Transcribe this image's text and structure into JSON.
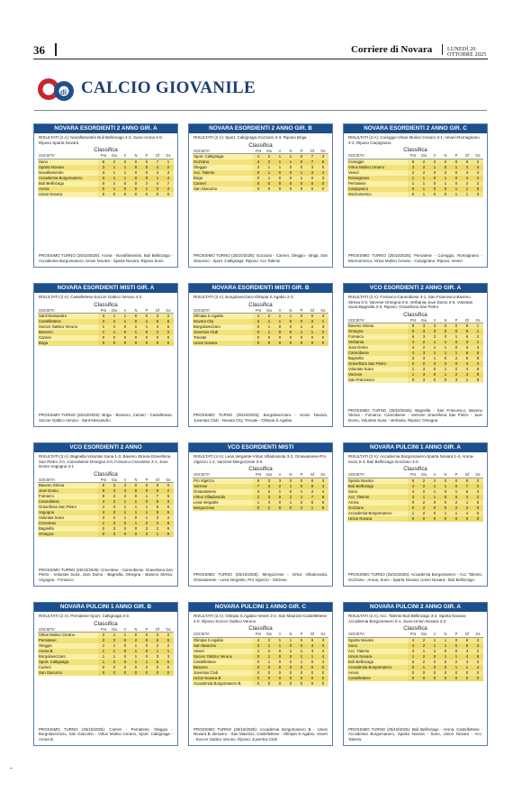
{
  "header": {
    "page_number": "36",
    "masthead": "Corriere di Novara",
    "date": "LUNEDÌ 20 OTTOBRE 2025"
  },
  "section": {
    "logo_text": "di",
    "title": "CALCIO GIOVANILE"
  },
  "table_headers": [
    "SOCIETA'",
    "Pnt",
    "Gio",
    "V",
    "N",
    "P",
    "Gf",
    "Gs"
  ],
  "classifica_label": "Classifica",
  "boxes": [
    {
      "title": "NOVARA ESORDIENTI 2 ANNO GIR. A",
      "results": "RISULTATI (2 A): Novaflamentin Buli Bellinzago 4-3, Suno-Arona 4-0. Riposo Sparta Novara",
      "rows": [
        [
          "Suno",
          "6",
          "2",
          "2",
          "0",
          "0",
          "7",
          "1"
        ],
        [
          "Sparta Novara",
          "3",
          "1",
          "1",
          "0",
          "0",
          "4",
          "2"
        ],
        [
          "Novafiamentin",
          "3",
          "1",
          "1",
          "0",
          "0",
          "4",
          "3"
        ],
        [
          "Accademia Borgomanero",
          "3",
          "1",
          "1",
          "0",
          "0",
          "1",
          "4"
        ],
        [
          "Buli Bellinzago",
          "0",
          "2",
          "0",
          "0",
          "2",
          "4",
          "7"
        ],
        [
          "Arona",
          "0",
          "1",
          "0",
          "0",
          "1",
          "0",
          "4"
        ],
        [
          "Union Novara",
          "0",
          "0",
          "0",
          "0",
          "0",
          "0",
          "0"
        ]
      ],
      "next": "PROSSIMO TURNO (25/10/2025): Arona - Novaflamentin, Buli Bellinzago - Accademia Borgomanero, Union Novara - Sparta Novara. Riposo Suno"
    },
    {
      "title": "NOVARA ESORDIENTI 2 ANNO GIR. B",
      "results": "RISULTATI (2 A): Sport. Caltignaga-Gozzano 3-3. Riposo Briga",
      "rows": [
        [
          "Sport. Caltignaga",
          "4",
          "2",
          "1",
          "1",
          "0",
          "7",
          "3"
        ],
        [
          "Gozzano",
          "4",
          "2",
          "1",
          "1",
          "0",
          "7",
          "6"
        ],
        [
          "Oleggio",
          "3",
          "1",
          "1",
          "0",
          "0",
          "3",
          "0"
        ],
        [
          "Acc. Talento",
          "0",
          "1",
          "0",
          "0",
          "1",
          "3",
          "4"
        ],
        [
          "Briga",
          "0",
          "1",
          "0",
          "0",
          "1",
          "0",
          "3"
        ],
        [
          "Cameri",
          "0",
          "0",
          "0",
          "0",
          "0",
          "0",
          "0"
        ],
        [
          "San Giacomo",
          "0",
          "0",
          "0",
          "0",
          "0",
          "0",
          "0"
        ]
      ],
      "next": "PROSSIMO TURNO (25/10/2025): Gozzano - Cameri, Oleggio - Briga, San Giacomo - Sport. Caltignaga. Riposo: Acc Talento"
    },
    {
      "title": "NOVARA ESORDIENTI 2 ANNO GIR. C",
      "results": "RISULTATI (2 A): Cureggio-Virtus Mulino Cerano 3-1, Veveri-Romagnano 2-2. Riposo Carpignano",
      "rows": [
        [
          "Cureggio",
          "6",
          "2",
          "2",
          "0",
          "0",
          "6",
          "2"
        ],
        [
          "Virtus Mulino Cerano",
          "3",
          "2",
          "1",
          "0",
          "1",
          "4",
          "4"
        ],
        [
          "Veveri",
          "2",
          "2",
          "0",
          "2",
          "0",
          "4",
          "4"
        ],
        [
          "Romagnano",
          "1",
          "1",
          "0",
          "1",
          "0",
          "2",
          "2"
        ],
        [
          "Pernatese",
          "1",
          "1",
          "0",
          "1",
          "0",
          "2",
          "2"
        ],
        [
          "Carpignano",
          "0",
          "1",
          "0",
          "0",
          "1",
          "1",
          "5"
        ],
        [
          "Mezzomerico",
          "0",
          "1",
          "0",
          "0",
          "1",
          "1",
          "3"
        ]
      ],
      "next": "PROSSIMO TURNO (25/10/2025): Pernatese - Cureggio, Romagnano - Mezzomerico, Virtus Mulino Cerano - Carpignano. Riposo: Veveri"
    },
    {
      "title": "NOVARA ESORDIENTI MISTI GIR. A",
      "results": "RISULTATI (2 A): Castelletese-Soccer Gattico Veruno 4-2.",
      "rows": [
        [
          "Sant'Alessandro",
          "3",
          "1",
          "1",
          "0",
          "0",
          "3",
          "2"
        ],
        [
          "Castellettese",
          "3",
          "2",
          "1",
          "0",
          "1",
          "6",
          "5"
        ],
        [
          "Soccer Gattico Veruno",
          "1",
          "2",
          "0",
          "1",
          "1",
          "4",
          "6"
        ],
        [
          "Bessero",
          "1",
          "1",
          "0",
          "1",
          "0",
          "2",
          "2"
        ],
        [
          "Cameri",
          "0",
          "0",
          "0",
          "0",
          "0",
          "0",
          "0"
        ],
        [
          "Briga",
          "0",
          "0",
          "0",
          "0",
          "0",
          "0",
          "0"
        ]
      ],
      "next": "PROSSIMO TURNO (25/10/2025): Briga - Bessero, Cameri - Castelletese, Soccer Gattico Veruno - Sant'Alessandro."
    },
    {
      "title": "NOVARA ESORDIENTI MISTI GIR. B",
      "results": "RISULTATI (2 A): Borgolavezzaro-Olimpia S.Agabio 2-3.",
      "rows": [
        [
          "Olimpia S.Agabio",
          "4",
          "2",
          "1",
          "1",
          "0",
          "5",
          "4"
        ],
        [
          "Novara City",
          "3",
          "1",
          "1",
          "0",
          "0",
          "2",
          "1"
        ],
        [
          "Borgolavezzaro",
          "0",
          "1",
          "0",
          "0",
          "1",
          "2",
          "3"
        ],
        [
          "Juventus Club",
          "0",
          "1",
          "0",
          "0",
          "1",
          "1",
          "2"
        ],
        [
          "Trecate",
          "0",
          "0",
          "0",
          "0",
          "0",
          "0",
          "0"
        ],
        [
          "Union Novara",
          "0",
          "0",
          "0",
          "0",
          "0",
          "0",
          "0"
        ]
      ],
      "next": "PROSSIMO TURNO (25/10/2025): Borgolavezzaro - Union Novara, Juventus Club - Novara City, Trecate - Olimpia S.Agabio."
    },
    {
      "title": "VCO ESORDIENTI 2 ANNO GIR. A",
      "results": "RISULTATI (2 A): Fomarco-Cannobiese 3-1, San Francesco-Baveno Stresa 0-3, Varzese-Omegna 0-5, Verbania-Juve Domo 2-0, Voluntas Suna-Bagnella 2-0. Riposo: Gravellona San Pietro",
      "rows": [
        [
          "Baveno Stresa",
          "9",
          "3",
          "3",
          "0",
          "0",
          "9",
          "1"
        ],
        [
          "Omegna",
          "9",
          "3",
          "3",
          "0",
          "0",
          "9",
          "1"
        ],
        [
          "Fomarco",
          "6",
          "3",
          "2",
          "0",
          "1",
          "6",
          "2"
        ],
        [
          "Verbania",
          "4",
          "2",
          "1",
          "1",
          "0",
          "3",
          "1"
        ],
        [
          "Juve Domo",
          "4",
          "2",
          "1",
          "1",
          "0",
          "3",
          "3"
        ],
        [
          "Cannobiese",
          "4",
          "3",
          "1",
          "1",
          "1",
          "6",
          "5"
        ],
        [
          "Bagnella",
          "3",
          "3",
          "1",
          "0",
          "2",
          "5",
          "8"
        ],
        [
          "Gravellona San Pietro",
          "2",
          "2",
          "0",
          "2",
          "0",
          "4",
          "4"
        ],
        [
          "Voluntas Suna",
          "1",
          "3",
          "0",
          "1",
          "2",
          "4",
          "8"
        ],
        [
          "Varzese",
          "1",
          "3",
          "0",
          "1",
          "2",
          "3",
          "8"
        ],
        [
          "San Francesco",
          "0",
          "3",
          "0",
          "0",
          "3",
          "1",
          "9"
        ]
      ],
      "next": "PROSSIMO TURNO (25/10/2025): Bagnella - San Francesco, Baveno Stresa - Fomarco, Cannobiese - Varzese Gravellona San Pietro - Juve Domo, Voluntas Suna - Verbania. Riposo: Omegna"
    },
    {
      "title": "VCO ESORDIENTI 2 ANNO",
      "results": "RISULTATI (3 A): Bagnella-Voluntas Suna 1-3, Baveno Stresa-Gravellona San Pietro 3-0, Cannobiese-Omegna 3-0, Fomarco-Crevolese 3-1, Juve Domo-Vogogna 3-1",
      "rows": [
        [
          "Baveno Stresa",
          "9",
          "3",
          "3",
          "0",
          "0",
          "9",
          "0"
        ],
        [
          "Juve Domo",
          "9",
          "3",
          "3",
          "0",
          "0",
          "9",
          "2"
        ],
        [
          "Fomarco",
          "6",
          "3",
          "2",
          "0",
          "1",
          "7",
          "5"
        ],
        [
          "Cannobiese",
          "4",
          "2",
          "1",
          "1",
          "0",
          "5",
          "3"
        ],
        [
          "Gravellona San Pietro",
          "4",
          "3",
          "1",
          "1",
          "1",
          "5",
          "6"
        ],
        [
          "Vogogna",
          "4",
          "3",
          "1",
          "1",
          "1",
          "8",
          "6"
        ],
        [
          "Voluntas Suna",
          "3",
          "2",
          "1",
          "0",
          "1",
          "3",
          "4"
        ],
        [
          "Crevolese",
          "1",
          "3",
          "0",
          "1",
          "2",
          "4",
          "8"
        ],
        [
          "Bagnella",
          "0",
          "3",
          "0",
          "0",
          "3",
          "2",
          "9"
        ],
        [
          "Omegna",
          "0",
          "3",
          "0",
          "0",
          "3",
          "1",
          "9"
        ]
      ],
      "next": "PROSSIMO TURNO (25/10/2025): Crevolese - Cannobiese, Gravellona San Pietro - Voluntas Suna, Juve Domo - Bagnella, Omegna - Baveno Stresa, Vogogna - Fomarco."
    },
    {
      "title": "VCO ESORDIENTI MISTI",
      "results": "RISULTATI (4 A): Lesa Vergante-Virtus Villadossola 3-3, Omavassese-Pro Vigezzo 1-2, Varzese-Mergozzese 3-0.",
      "rows": [
        [
          "Pro Vigezzo",
          "9",
          "3",
          "3",
          "0",
          "0",
          "8",
          "3"
        ],
        [
          "Varzese",
          "7",
          "3",
          "2",
          "1",
          "0",
          "8",
          "3"
        ],
        [
          "Omavassese",
          "3",
          "2",
          "1",
          "0",
          "1",
          "4",
          "4"
        ],
        [
          "Virtus Villadossola",
          "2",
          "3",
          "0",
          "2",
          "1",
          "7",
          "8"
        ],
        [
          "Lesa Vergante",
          "1",
          "3",
          "0",
          "1",
          "2",
          "5",
          "8"
        ],
        [
          "Mergozzese",
          "0",
          "2",
          "0",
          "0",
          "2",
          "1",
          "5"
        ]
      ],
      "next": "PROSSIMO TURNO (25/10/2025): Mergozzese - Virtus Villadossola, Omavassese - Lesa Vergante, Pro Vigezzo - Varzese."
    },
    {
      "title": "NOVARA PULCINI 1 ANNO GIR. A",
      "results": "RISULTATI (2 A): Accademia Borgomanero-Sparta Novara 1-4, Arona-Suno 0-4, Buli Bellinzago-Gozzano 4-0.",
      "rows": [
        [
          "Sparta Novara",
          "6",
          "2",
          "2",
          "0",
          "0",
          "8",
          "2"
        ],
        [
          "Buli Bellinzago",
          "4",
          "2",
          "1",
          "1",
          "0",
          "7",
          "2"
        ],
        [
          "Suno",
          "3",
          "2",
          "1",
          "0",
          "1",
          "6",
          "3"
        ],
        [
          "Acc. Talento",
          "3",
          "1",
          "1",
          "0",
          "0",
          "4",
          "2"
        ],
        [
          "Arona",
          "0",
          "2",
          "0",
          "0",
          "2",
          "1",
          "6"
        ],
        [
          "Gozzano",
          "0",
          "2",
          "0",
          "0",
          "2",
          "2",
          "8"
        ],
        [
          "Accademia Borgomanero",
          "1",
          "2",
          "0",
          "1",
          "1",
          "4",
          "5"
        ],
        [
          "Union Novara",
          "0",
          "0",
          "0",
          "0",
          "0",
          "0",
          "0"
        ]
      ],
      "next": "PROSSIMO TURNO (25/10/2025): Accademia Borgomanero - Acc. Talento, Gozzano - Arona, Suno - Sparta Novara, Union Novara - Buli Bellinzago."
    },
    {
      "title": "NOVARA PULCINI 1 ANNO GIR. B",
      "results": "RISULTATI (2 A): Pernatese-Sport. Caltignaga 3-3.",
      "rows": [
        [
          "Virtus Mulino Cerano",
          "3",
          "1",
          "1",
          "0",
          "0",
          "3",
          "2"
        ],
        [
          "Pernatese",
          "2",
          "2",
          "0",
          "2",
          "0",
          "5",
          "5"
        ],
        [
          "Oleggio",
          "1",
          "1",
          "0",
          "1",
          "0",
          "2",
          "2"
        ],
        [
          "Arona B",
          "1",
          "1",
          "0",
          "1",
          "0",
          "1",
          "1"
        ],
        [
          "Borgolavezzaro",
          "1",
          "1",
          "0",
          "1",
          "0",
          "3",
          "3"
        ],
        [
          "Sport. Caltignaga",
          "1",
          "2",
          "0",
          "1",
          "1",
          "5",
          "6"
        ],
        [
          "Cameri",
          "0",
          "0",
          "0",
          "0",
          "0",
          "0",
          "0"
        ],
        [
          "San Giacomo",
          "0",
          "0",
          "0",
          "0",
          "0",
          "0",
          "0"
        ]
      ],
      "next": "PROSSIMO TURNO (25/10/2025): Cameri - Pernatese, Oleggio - Borgolavezzaro, San Giacomo - Virtus Mulino Cerano, Sport. Caltignaga - Arona B."
    },
    {
      "title": "NOVARA PULCINI 1 ANNO GIR. C",
      "results": "RISULTATI (2 A): Olimpia S.Agabio-Veveri 2-2, San Maurizio-Castellettese 4-0. Riposo Soccer Gattico Veruno",
      "rows": [
        [
          "Olimpia S.Agabio",
          "4",
          "2",
          "1",
          "1",
          "0",
          "6",
          "3"
        ],
        [
          "San Maurizio",
          "3",
          "1",
          "1",
          "0",
          "0",
          "4",
          "0"
        ],
        [
          "Veveri",
          "1",
          "2",
          "0",
          "1",
          "1",
          "3",
          "2"
        ],
        [
          "Soccer Gattico Veruno",
          "0",
          "1",
          "0",
          "0",
          "1",
          "1",
          "4"
        ],
        [
          "Castellettese",
          "0",
          "1",
          "0",
          "0",
          "1",
          "0",
          "4"
        ],
        [
          "Bessero",
          "0",
          "0",
          "0",
          "0",
          "0",
          "0",
          "0"
        ],
        [
          "Juventus Club",
          "0",
          "0",
          "0",
          "0",
          "0",
          "0",
          "0"
        ],
        [
          "Union Novara B",
          "0",
          "0",
          "0",
          "0",
          "0",
          "0",
          "0"
        ],
        [
          "Accademia Borgomanero B",
          "0",
          "0",
          "0",
          "0",
          "0",
          "0",
          "0"
        ]
      ],
      "next": "PROSSIMO TURNO (25/10/2025): Accademia Borgomanero B - Union Novara B, Bessero - San Maurizio, Castellettese - Olimpia S.Agabio, Veveri - Soccer Gattico Veruno. Riposo: Juventus Club"
    },
    {
      "title": "NOVARA PULCINI 2 ANNO GIR. A",
      "results": "RISULTATI (2 A): Acc. Talento-Buli Bellinzago 3-2, Sparta Novara-Accademia Borgomanero 5-1, Suno-Union Novara 2-2.",
      "rows": [
        [
          "Sparta Novara",
          "4",
          "2",
          "1",
          "1",
          "0",
          "6",
          "3"
        ],
        [
          "Suno",
          "4",
          "2",
          "1",
          "1",
          "0",
          "5",
          "3"
        ],
        [
          "Acc. Talento",
          "3",
          "1",
          "1",
          "0",
          "0",
          "3",
          "2"
        ],
        [
          "Union Novara",
          "1",
          "2",
          "0",
          "1",
          "1",
          "4",
          "5"
        ],
        [
          "Buli Bellinzago",
          "0",
          "2",
          "0",
          "0",
          "2",
          "3",
          "6"
        ],
        [
          "Accademia Borgomanero",
          "0",
          "1",
          "0",
          "0",
          "1",
          "1",
          "4"
        ],
        [
          "Arona",
          "0",
          "0",
          "0",
          "0",
          "0",
          "0",
          "0"
        ],
        [
          "Castellettese",
          "0",
          "0",
          "0",
          "0",
          "0",
          "0",
          "0"
        ]
      ],
      "next": "PROSSIMO TURNO (25/10/2025): Buli Bellinzago - Arona, Castellettese - Accademia Borgomanero, Sparta Novara - Suno, Union Novara - Acc. Talento."
    }
  ]
}
